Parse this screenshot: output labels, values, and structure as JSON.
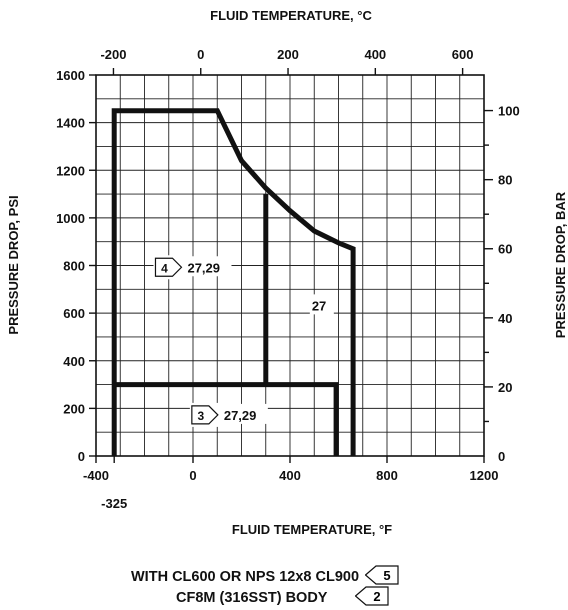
{
  "chart_data": {
    "type": "line",
    "title": "",
    "xlabel": "FLUID TEMPERATURE, °F",
    "ylabel": "PRESSURE DROP, PSI",
    "x2label": "FLUID TEMPERATURE, °C",
    "y2label": "PRESSURE DROP, BAR",
    "xlim": [
      -400,
      1200
    ],
    "ylim": [
      0,
      1600
    ],
    "x2lim": [
      -240,
      649
    ],
    "y2lim": [
      0,
      110.3
    ],
    "grid": true,
    "x_ticks": [
      {
        "value": -400,
        "label": "-400"
      },
      {
        "value": 0,
        "label": "0"
      },
      {
        "value": 400,
        "label": "400"
      },
      {
        "value": 800,
        "label": "800"
      },
      {
        "value": 1200,
        "label": "1200"
      }
    ],
    "x_extra_tick": {
      "value": -325,
      "label": "-325"
    },
    "y_ticks": [
      0,
      200,
      400,
      600,
      800,
      1000,
      1200,
      1400,
      1600
    ],
    "x2_ticks": [
      {
        "value": -200,
        "label": "-200"
      },
      {
        "value": 0,
        "label": "0"
      },
      {
        "value": 200,
        "label": "200"
      },
      {
        "value": 400,
        "label": "400"
      },
      {
        "value": 600,
        "label": "600"
      }
    ],
    "y2_ticks": [
      {
        "value": 0,
        "label": "0"
      },
      {
        "value": 20,
        "label": "20"
      },
      {
        "value": 40,
        "label": "40"
      },
      {
        "value": 60,
        "label": "60"
      },
      {
        "value": 80,
        "label": "80"
      },
      {
        "value": 100,
        "label": "100"
      }
    ],
    "series": [
      {
        "x": [
          -325,
          -325,
          100,
          200,
          300,
          400,
          500,
          600,
          660,
          660
        ],
        "y": [
          0,
          1450,
          1450,
          1240,
          1125,
          1030,
          945,
          895,
          870,
          0
        ]
      },
      {
        "x": [
          300,
          300
        ],
        "y": [
          1100,
          300
        ]
      },
      {
        "x": [
          -325,
          590,
          590
        ],
        "y": [
          300,
          300,
          0
        ]
      }
    ],
    "annotations": [
      {
        "tag": "4",
        "text": "27,29",
        "x": -130,
        "y": 780
      },
      {
        "tag": "",
        "text": "27",
        "x": 490,
        "y": 620
      },
      {
        "tag": "3",
        "text": "27,29",
        "x": 20,
        "y": 160
      }
    ]
  },
  "caption": {
    "line1": "WITH CL600 OR NPS 12x8 CL900",
    "line1_tag": "5",
    "line2": "CF8M (316SST) BODY",
    "line2_tag": "2"
  }
}
